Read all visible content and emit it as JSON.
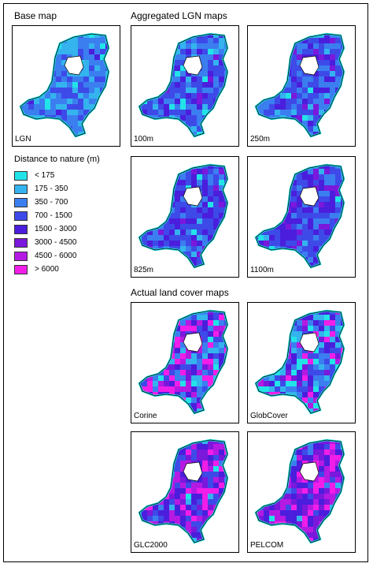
{
  "headings": {
    "base": "Base map",
    "aggregated": "Aggregated LGN maps",
    "actual": "Actual land cover maps"
  },
  "legend": {
    "title": "Distance to nature (m)",
    "items": [
      {
        "label": "< 175",
        "color": "#22e3e8"
      },
      {
        "label": "175 - 350",
        "color": "#34b3ee"
      },
      {
        "label": "350 - 700",
        "color": "#3b7ef0"
      },
      {
        "label": "700 - 1500",
        "color": "#3e4ae8"
      },
      {
        "label": "1500 - 3000",
        "color": "#4a1edc"
      },
      {
        "label": "3000 - 4500",
        "color": "#7a18dc"
      },
      {
        "label": "4500 - 6000",
        "color": "#b51ae3"
      },
      {
        "label": "> 6000",
        "color": "#f01ee8"
      }
    ]
  },
  "panels": [
    {
      "label": "LGN",
      "dominant": [
        0.05,
        0.25,
        0.4,
        0.25,
        0.05,
        0,
        0,
        0
      ]
    },
    {
      "label": "100m",
      "dominant": [
        0.03,
        0.12,
        0.35,
        0.35,
        0.12,
        0.03,
        0,
        0
      ]
    },
    {
      "label": "250m",
      "dominant": [
        0.02,
        0.08,
        0.3,
        0.38,
        0.18,
        0.04,
        0,
        0
      ]
    },
    {
      "label": "825m",
      "dominant": [
        0.02,
        0.04,
        0.16,
        0.4,
        0.3,
        0.08,
        0,
        0
      ]
    },
    {
      "label": "1100m",
      "dominant": [
        0.02,
        0.03,
        0.12,
        0.36,
        0.35,
        0.12,
        0,
        0
      ]
    },
    {
      "label": "Corine",
      "dominant": [
        0.05,
        0.1,
        0.15,
        0.15,
        0.15,
        0.1,
        0.12,
        0.18
      ]
    },
    {
      "label": "GlobCover",
      "dominant": [
        0.12,
        0.15,
        0.15,
        0.15,
        0.12,
        0.1,
        0.1,
        0.11
      ]
    },
    {
      "label": "GLC2000",
      "dominant": [
        0.02,
        0.03,
        0.05,
        0.12,
        0.25,
        0.2,
        0.18,
        0.15
      ]
    },
    {
      "label": "PELCOM",
      "dominant": [
        0.02,
        0.03,
        0.05,
        0.1,
        0.22,
        0.2,
        0.2,
        0.18
      ]
    }
  ]
}
